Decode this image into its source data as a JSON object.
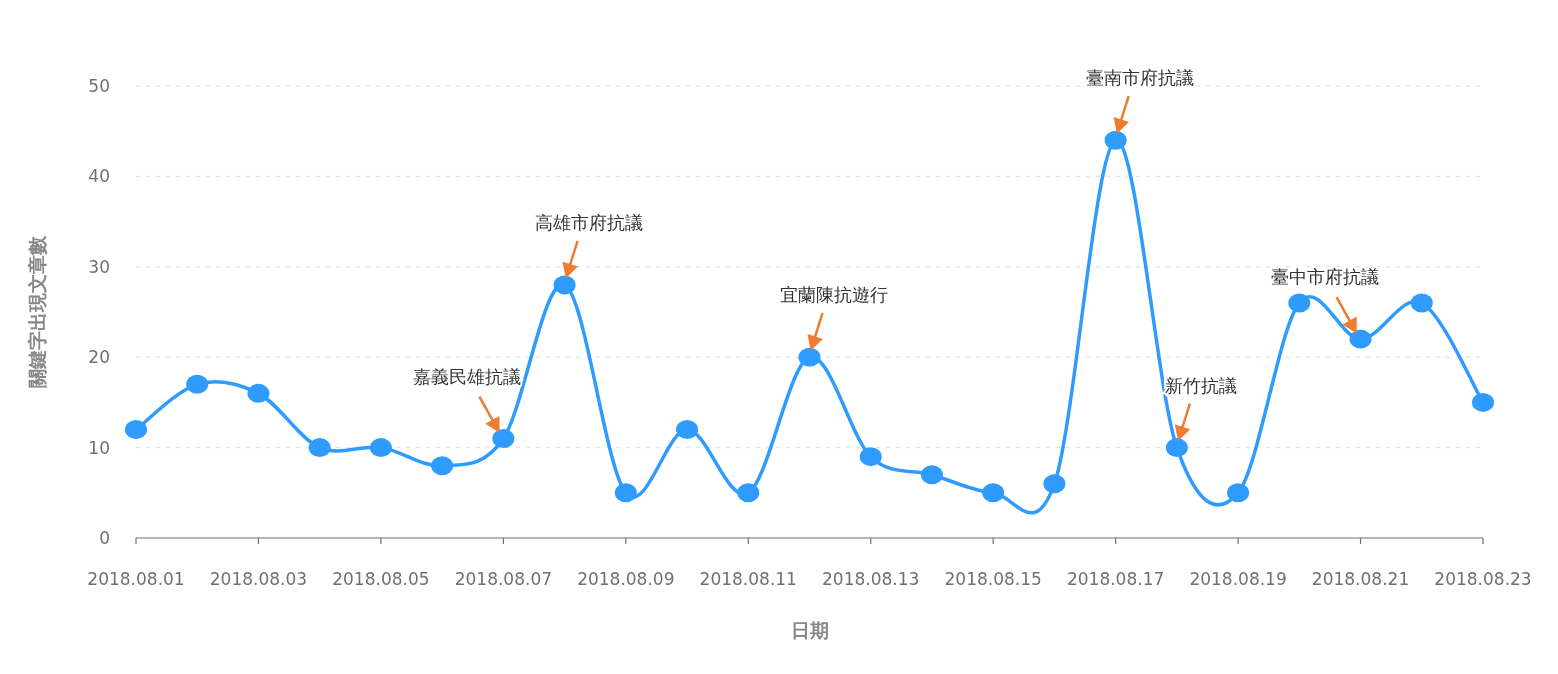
{
  "chart_data": {
    "type": "line",
    "xlabel": "日期",
    "ylabel": "關鍵字出現文章數",
    "x": [
      "2018-08-01",
      "2018-08-02",
      "2018-08-03",
      "2018-08-04",
      "2018-08-05",
      "2018-08-06",
      "2018-08-07",
      "2018-08-08",
      "2018-08-09",
      "2018-08-10",
      "2018-08-11",
      "2018-08-12",
      "2018-08-13",
      "2018-08-14",
      "2018-08-15",
      "2018-08-16",
      "2018-08-17",
      "2018-08-18",
      "2018-08-19",
      "2018-08-20",
      "2018-08-21",
      "2018-08-22",
      "2018-08-23"
    ],
    "series": [
      {
        "color": "#2f9bff",
        "values": [
          12,
          17,
          16,
          10,
          10,
          8,
          11,
          28,
          5,
          12,
          5,
          20,
          9,
          7,
          5,
          6,
          44,
          10,
          5,
          26,
          22,
          26,
          15
        ]
      }
    ],
    "xlim": [
      "2018-08-01",
      "2018-08-23"
    ],
    "xticks": [
      {
        "value": "2018-08-01",
        "label": "2018.08.01"
      },
      {
        "value": "2018-08-03",
        "label": "2018.08.03"
      },
      {
        "value": "2018-08-05",
        "label": "2018.08.05"
      },
      {
        "value": "2018-08-07",
        "label": "2018.08.07"
      },
      {
        "value": "2018-08-09",
        "label": "2018.08.09"
      },
      {
        "value": "2018-08-11",
        "label": "2018.08.11"
      },
      {
        "value": "2018-08-13",
        "label": "2018.08.13"
      },
      {
        "value": "2018-08-15",
        "label": "2018.08.15"
      },
      {
        "value": "2018-08-17",
        "label": "2018.08.17"
      },
      {
        "value": "2018-08-19",
        "label": "2018.08.19"
      },
      {
        "value": "2018-08-21",
        "label": "2018.08.21"
      },
      {
        "value": "2018-08-23",
        "label": "2018.08.23"
      }
    ],
    "ylim": [
      0,
      50
    ],
    "yticks": [
      0,
      10,
      20,
      30,
      40,
      50
    ],
    "grid": "y",
    "marker": "circle",
    "line_style": "solid",
    "annotations": [
      {
        "text": "嘉義民雄抗議",
        "x": "2018-08-07",
        "y": 11
      },
      {
        "text": "高雄市府抗議",
        "x": "2018-08-08",
        "y": 28
      },
      {
        "text": "宜蘭陳抗遊行",
        "x": "2018-08-12",
        "y": 20
      },
      {
        "text": "臺南市府抗議",
        "x": "2018-08-17",
        "y": 44
      },
      {
        "text": "新竹抗議",
        "x": "2018-08-18",
        "y": 10
      },
      {
        "text": "臺中市府抗議",
        "x": "2018-08-21",
        "y": 22
      }
    ]
  }
}
